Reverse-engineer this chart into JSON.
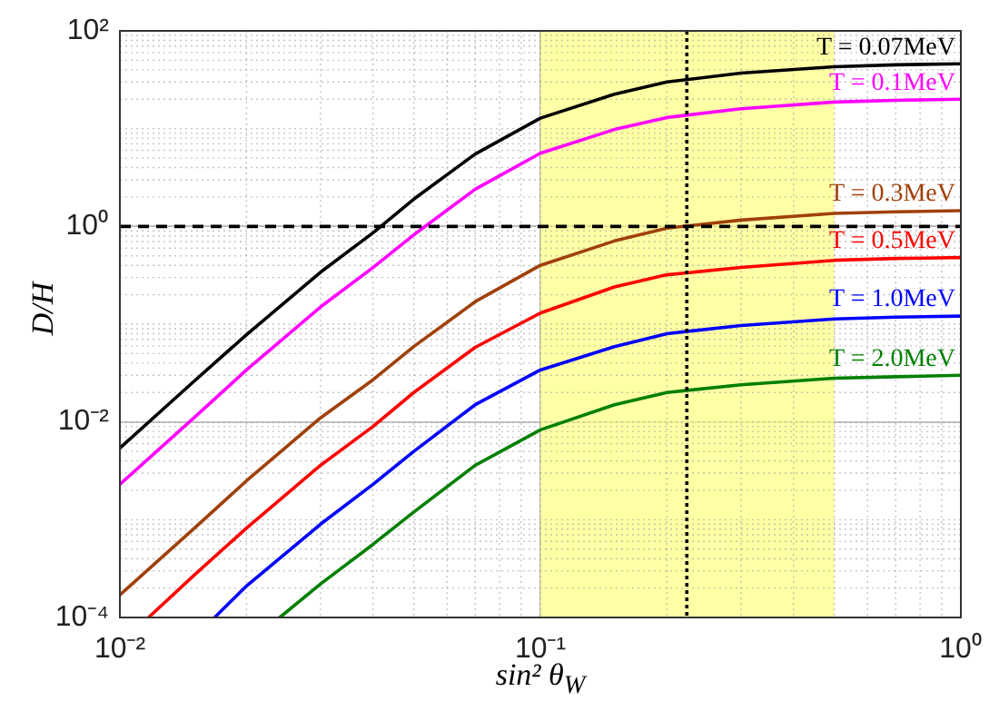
{
  "chart_data": {
    "type": "line",
    "xlabel": "sin² θ$_{W}$",
    "ylabel": "D/H",
    "log": "xy",
    "grid": true,
    "legend": false,
    "marker": "none",
    "line_style": "solid",
    "xlim": [
      0.01,
      1
    ],
    "xticks": [
      {
        "value": 0.01,
        "label": "10⁻²"
      },
      {
        "value": 0.1,
        "label": "10⁻¹"
      },
      {
        "value": 1,
        "label": "10⁰"
      }
    ],
    "ylim": [
      0.0001,
      100
    ],
    "yticks": [
      {
        "value": 0.0001,
        "label": "10⁻⁴"
      },
      {
        "value": 0.01,
        "label": "10⁻²"
      },
      {
        "value": 1,
        "label": "10⁰"
      },
      {
        "value": 100,
        "label": "10²"
      }
    ],
    "x": [
      0.01,
      0.015,
      0.02,
      0.03,
      0.04,
      0.05,
      0.07,
      0.1,
      0.15,
      0.2,
      0.3,
      0.5,
      0.7,
      1
    ],
    "series": [
      {
        "name": "T = 0.07MeV",
        "color": "#000000",
        "values": [
          0.0054,
          0.026,
          0.078,
          0.34,
          0.86,
          1.9,
          5.5,
          12.8,
          22.5,
          30,
          37,
          43,
          45,
          46
        ]
      },
      {
        "name": "T = 0.1MeV",
        "color": "#ff00ff",
        "values": [
          0.0023,
          0.011,
          0.034,
          0.15,
          0.38,
          0.82,
          2.4,
          5.6,
          9.8,
          13,
          16,
          18.7,
          19.5,
          20
        ]
      },
      {
        "name": "T = 0.3MeV",
        "color": "#a0400a",
        "values": [
          0.00017,
          0.00081,
          0.0025,
          0.011,
          0.027,
          0.059,
          0.17,
          0.4,
          0.71,
          0.96,
          1.16,
          1.36,
          1.41,
          1.45
        ]
      },
      {
        "name": "T = 0.5MeV",
        "color": "#ff0000",
        "x": [
          0.0117,
          0.015,
          0.02,
          0.03,
          0.04,
          0.05,
          0.07,
          0.1,
          0.15,
          0.2,
          0.3,
          0.5,
          0.7,
          1
        ],
        "values": [
          0.0001,
          0.00027,
          0.00082,
          0.0036,
          0.009,
          0.02,
          0.058,
          0.13,
          0.24,
          0.32,
          0.38,
          0.45,
          0.47,
          0.48
        ]
      },
      {
        "name": "T = 1.0MeV",
        "color": "#0000ff",
        "x": [
          0.0168,
          0.02,
          0.03,
          0.04,
          0.05,
          0.07,
          0.1,
          0.15,
          0.2,
          0.3,
          0.5,
          0.7,
          1
        ],
        "values": [
          0.0001,
          0.00021,
          0.0009,
          0.0023,
          0.005,
          0.015,
          0.034,
          0.059,
          0.08,
          0.097,
          0.113,
          0.118,
          0.121
        ]
      },
      {
        "name": "T = 2.0MeV",
        "color": "#008000",
        "x": [
          0.024,
          0.03,
          0.04,
          0.05,
          0.07,
          0.1,
          0.15,
          0.2,
          0.3,
          0.5,
          0.7,
          1
        ],
        "values": [
          0.0001,
          0.00022,
          0.00056,
          0.0012,
          0.0036,
          0.0083,
          0.015,
          0.02,
          0.024,
          0.028,
          0.029,
          0.03
        ]
      }
    ],
    "ref_lines": [
      {
        "axis": "y",
        "value": 1,
        "color": "#000000",
        "line_style": "dashed"
      },
      {
        "axis": "x",
        "value": 0.223,
        "color": "#000000",
        "line_style": "dotted"
      }
    ],
    "bands": [
      {
        "axis": "x",
        "from": 0.1,
        "to": 0.5,
        "color": "#ffff80"
      }
    ]
  }
}
